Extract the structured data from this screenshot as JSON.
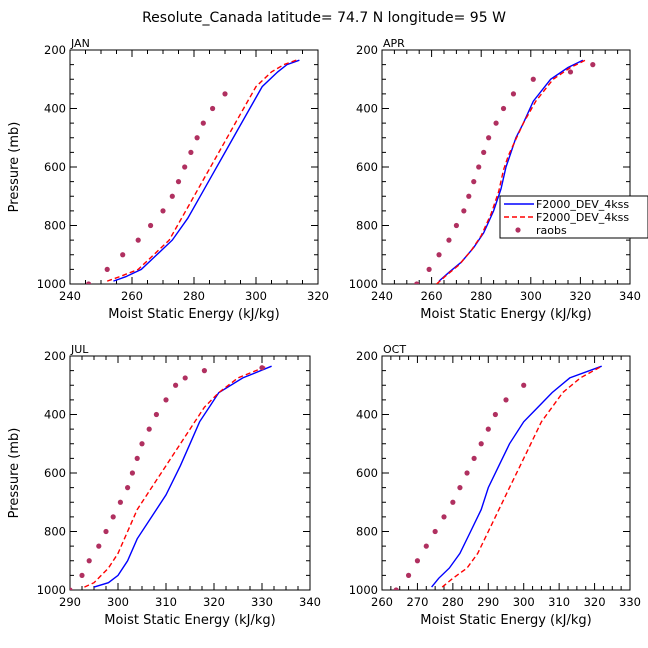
{
  "title": "Resolute_Canada   latitude= 74.7 N longitude= 95 W",
  "colors": {
    "model_a": "#0000ff",
    "model_b": "#ff0000",
    "raobs": "#b03060",
    "axis": "#000000"
  },
  "legend": {
    "entries": [
      {
        "label": "F2000_DEV_4kss",
        "style": "solid",
        "color": "#0000ff"
      },
      {
        "label": "F2000_DEV_4kss",
        "style": "dashed",
        "color": "#ff0000"
      },
      {
        "label": "raobs",
        "style": "dot",
        "color": "#b03060"
      }
    ]
  },
  "chart_data": [
    {
      "type": "line",
      "panel": "JAN",
      "xlabel": "Moist Static Energy (kJ/kg)",
      "ylabel": "Pressure (mb)",
      "xlim": [
        240,
        320
      ],
      "xticks": [
        240,
        260,
        280,
        300,
        320
      ],
      "ylim": [
        1000,
        200
      ],
      "yticks": [
        200,
        400,
        600,
        800,
        1000
      ],
      "series": [
        {
          "style": "solid",
          "color": "#0000ff",
          "x": [
            254,
            258,
            263,
            268,
            273,
            278,
            282,
            286,
            290,
            294,
            298,
            302,
            307,
            310,
            314
          ],
          "p": [
            990,
            975,
            950,
            900,
            850,
            775,
            700,
            625,
            550,
            475,
            400,
            325,
            275,
            250,
            235
          ]
        },
        {
          "style": "dashed",
          "color": "#ff0000",
          "x": [
            252,
            256,
            262,
            267,
            272,
            276,
            280,
            284,
            288,
            292,
            296,
            300,
            305,
            309,
            313
          ],
          "p": [
            990,
            975,
            950,
            900,
            850,
            775,
            700,
            625,
            550,
            475,
            400,
            325,
            275,
            250,
            235
          ]
        },
        {
          "style": "dot",
          "color": "#b03060",
          "x": [
            246,
            252,
            257,
            262,
            266,
            270,
            273,
            275,
            277,
            279,
            281,
            283,
            286,
            290
          ],
          "p": [
            1000,
            950,
            900,
            850,
            800,
            750,
            700,
            650,
            600,
            550,
            500,
            450,
            400,
            350
          ]
        }
      ]
    },
    {
      "type": "line",
      "panel": "APR",
      "xlabel": "Moist Static Energy (kJ/kg)",
      "ylabel": "",
      "xlim": [
        240,
        340
      ],
      "xticks": [
        240,
        260,
        280,
        300,
        320,
        340
      ],
      "ylim": [
        1000,
        200
      ],
      "yticks": [
        200,
        400,
        600,
        800,
        1000
      ],
      "series": [
        {
          "style": "solid",
          "color": "#0000ff",
          "x": [
            263,
            267,
            272,
            277,
            281,
            285,
            288,
            290,
            292,
            294,
            297,
            301,
            308,
            315,
            321
          ],
          "p": [
            990,
            960,
            925,
            875,
            825,
            750,
            675,
            600,
            550,
            500,
            450,
            375,
            300,
            260,
            235
          ]
        },
        {
          "style": "dashed",
          "color": "#ff0000",
          "x": [
            262,
            266,
            271,
            276,
            280,
            284,
            287,
            289,
            291,
            294,
            297,
            302,
            309,
            316,
            322
          ],
          "p": [
            1000,
            970,
            935,
            885,
            835,
            760,
            685,
            610,
            560,
            505,
            450,
            375,
            300,
            260,
            235
          ]
        },
        {
          "style": "dot",
          "color": "#b03060",
          "x": [
            254,
            259,
            263,
            267,
            270,
            273,
            275,
            277,
            279,
            281,
            283,
            286,
            289,
            293,
            301,
            316,
            325
          ],
          "p": [
            1000,
            950,
            900,
            850,
            800,
            750,
            700,
            650,
            600,
            550,
            500,
            450,
            400,
            350,
            300,
            275,
            250
          ]
        }
      ]
    },
    {
      "type": "line",
      "panel": "JUL",
      "xlabel": "Moist Static Energy (kJ/kg)",
      "ylabel": "Pressure (mb)",
      "xlim": [
        290,
        340
      ],
      "xticks": [
        290,
        300,
        310,
        320,
        330,
        340
      ],
      "ylim": [
        1000,
        200
      ],
      "yticks": [
        200,
        400,
        600,
        800,
        1000
      ],
      "series": [
        {
          "style": "solid",
          "color": "#0000ff",
          "x": [
            295,
            298,
            300,
            302,
            304,
            307,
            310,
            313,
            315,
            317,
            319,
            321,
            326,
            332
          ],
          "p": [
            990,
            975,
            950,
            900,
            825,
            750,
            675,
            575,
            500,
            425,
            375,
            325,
            275,
            235
          ]
        },
        {
          "style": "dashed",
          "color": "#ff0000",
          "x": [
            293,
            295,
            298,
            300,
            302,
            304,
            307,
            310,
            313,
            316,
            318,
            321,
            325,
            331
          ],
          "p": [
            990,
            975,
            925,
            875,
            800,
            725,
            650,
            575,
            500,
            425,
            375,
            325,
            275,
            235
          ]
        },
        {
          "style": "dot",
          "color": "#b03060",
          "x": [
            290,
            292.5,
            294,
            296,
            297.5,
            299,
            300.5,
            302,
            303,
            304,
            305,
            306.5,
            308,
            310,
            312,
            314,
            318,
            330
          ],
          "p": [
            1000,
            950,
            900,
            850,
            800,
            750,
            700,
            650,
            600,
            550,
            500,
            450,
            400,
            350,
            300,
            275,
            250,
            240
          ]
        }
      ]
    },
    {
      "type": "line",
      "panel": "OCT",
      "xlabel": "Moist Static Energy (kJ/kg)",
      "ylabel": "",
      "xlim": [
        260,
        330
      ],
      "xticks": [
        260,
        270,
        280,
        290,
        300,
        310,
        320,
        330
      ],
      "ylim": [
        1000,
        200
      ],
      "yticks": [
        200,
        400,
        600,
        800,
        1000
      ],
      "series": [
        {
          "style": "solid",
          "color": "#0000ff",
          "x": [
            274,
            276,
            279,
            282,
            285,
            288,
            290,
            293,
            296,
            300,
            304,
            308,
            313,
            322
          ],
          "p": [
            990,
            960,
            925,
            875,
            800,
            725,
            650,
            575,
            500,
            425,
            375,
            325,
            275,
            235
          ]
        },
        {
          "style": "dashed",
          "color": "#ff0000",
          "x": [
            277,
            280,
            284,
            287,
            290,
            293,
            296,
            299,
            302,
            305,
            308,
            311,
            316,
            322
          ],
          "p": [
            990,
            960,
            925,
            875,
            800,
            725,
            650,
            575,
            500,
            425,
            375,
            325,
            275,
            235
          ]
        },
        {
          "style": "dot",
          "color": "#b03060",
          "x": [
            264,
            267.5,
            270,
            272.5,
            275,
            277.5,
            280,
            282,
            284,
            286,
            288,
            290,
            292,
            295,
            300
          ],
          "p": [
            1000,
            950,
            900,
            850,
            800,
            750,
            700,
            650,
            600,
            550,
            500,
            450,
            400,
            350,
            300
          ]
        }
      ]
    }
  ]
}
